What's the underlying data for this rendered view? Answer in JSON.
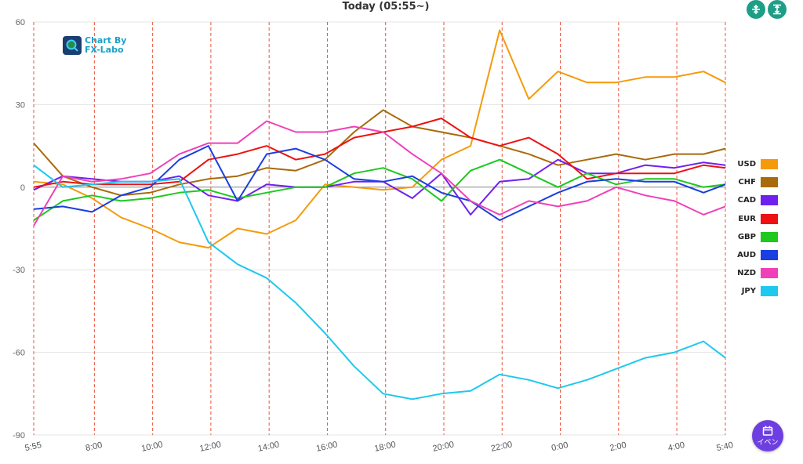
{
  "header": {
    "title": "Today  (05:55~)"
  },
  "toolbar": {
    "compress_icon": "compress-vertical-icon",
    "expand_icon": "expand-vertical-icon"
  },
  "logo": {
    "line1": "Chart By",
    "line2": "FX-Labo"
  },
  "event_button": {
    "label": "イベン",
    "icon": "calendar-icon"
  },
  "chart_data": {
    "type": "line",
    "title": "Today  (05:55~)",
    "xlabel": "",
    "ylabel": "",
    "ylim": [
      -90,
      60
    ],
    "yticks": [
      60,
      30,
      0,
      -30,
      -60,
      -90
    ],
    "grid": true,
    "legend_position": "right",
    "xtick_labels": [
      "5:55",
      "8:00",
      "10:00",
      "12:00",
      "14:00",
      "16:00",
      "18:00",
      "20:00",
      "22:00",
      "0:00",
      "2:00",
      "4:00",
      "5:40"
    ],
    "xtick_hours": [
      0,
      2.083,
      4.083,
      6.083,
      8.083,
      10.083,
      12.083,
      14.083,
      16.083,
      18.083,
      20.083,
      22.083,
      23.75
    ],
    "x_hours": [
      0,
      1,
      2,
      3,
      4,
      5,
      6,
      7,
      8,
      9,
      10,
      11,
      12,
      13,
      14,
      15,
      16,
      17,
      18,
      19,
      20,
      21,
      22,
      23,
      23.75
    ],
    "series": [
      {
        "name": "USD",
        "color": "#f59a0c",
        "values": [
          2,
          1,
          -4,
          -11,
          -15,
          -20,
          -22,
          -15,
          -17,
          -12,
          1,
          0,
          -1,
          0,
          10,
          15,
          57,
          32,
          42,
          38,
          38,
          40,
          40,
          42,
          38
        ]
      },
      {
        "name": "CHF",
        "color": "#a86a0a",
        "values": [
          16,
          4,
          0,
          -3,
          -2,
          1,
          3,
          4,
          7,
          6,
          10,
          20,
          28,
          22,
          20,
          18,
          15,
          12,
          8,
          10,
          12,
          10,
          12,
          12,
          14
        ]
      },
      {
        "name": "CAD",
        "color": "#7020ee",
        "values": [
          -1,
          4,
          3,
          2,
          2,
          4,
          -3,
          -5,
          1,
          0,
          0,
          2,
          2,
          -4,
          5,
          -10,
          2,
          3,
          10,
          5,
          5,
          8,
          7,
          9,
          8
        ]
      },
      {
        "name": "EUR",
        "color": "#ee1111",
        "values": [
          0,
          2,
          1,
          1,
          1,
          2,
          10,
          12,
          15,
          10,
          12,
          18,
          20,
          22,
          25,
          18,
          15,
          18,
          12,
          3,
          5,
          5,
          5,
          8,
          7
        ]
      },
      {
        "name": "GBP",
        "color": "#1ec81e",
        "values": [
          -12,
          -5,
          -3,
          -5,
          -4,
          -2,
          -1,
          -4,
          -2,
          0,
          0,
          5,
          7,
          3,
          -5,
          6,
          10,
          5,
          0,
          5,
          1,
          3,
          3,
          0,
          1
        ]
      },
      {
        "name": "AUD",
        "color": "#1a3ee0",
        "values": [
          -8,
          -7,
          -9,
          -3,
          0,
          10,
          15,
          -5,
          12,
          14,
          10,
          3,
          2,
          4,
          -2,
          -5,
          -12,
          -7,
          -2,
          2,
          3,
          2,
          2,
          -2,
          1
        ]
      },
      {
        "name": "NZD",
        "color": "#f040b8",
        "values": [
          -14,
          4,
          2,
          3,
          5,
          12,
          16,
          16,
          24,
          20,
          20,
          22,
          20,
          12,
          5,
          -5,
          -10,
          -5,
          -7,
          -5,
          0,
          -3,
          -5,
          -10,
          -7
        ]
      },
      {
        "name": "JPY",
        "color": "#1ec8ee",
        "values": [
          8,
          0,
          1,
          2,
          2,
          3,
          -20,
          -28,
          -33,
          -42,
          -53,
          -65,
          -75,
          -77,
          -75,
          -74,
          -68,
          -70,
          -73,
          -70,
          -66,
          -62,
          -60,
          -56,
          -62
        ]
      }
    ]
  }
}
